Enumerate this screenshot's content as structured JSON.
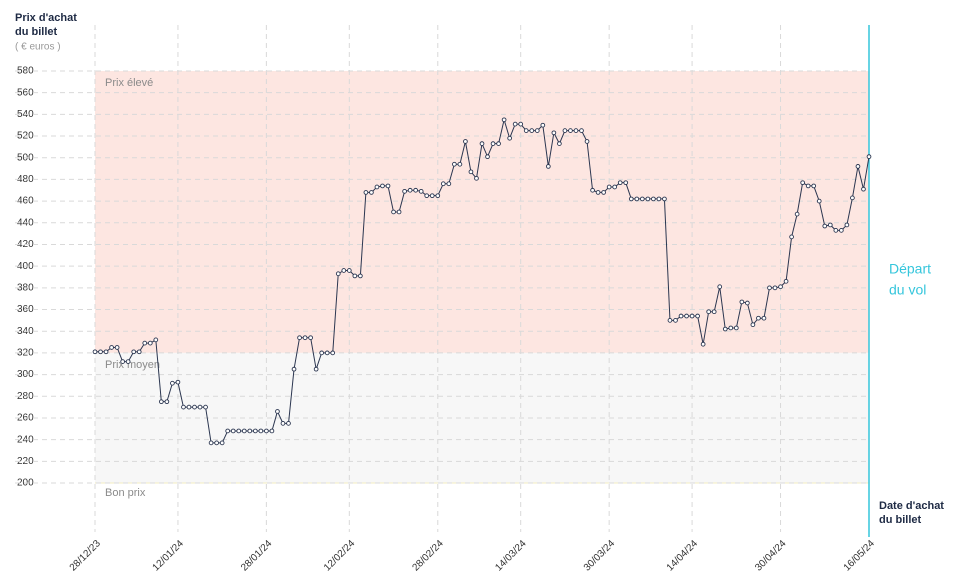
{
  "chart_data": {
    "type": "line",
    "y_title": [
      "Prix d'achat",
      "du billet"
    ],
    "y_unit": "( € euros )",
    "x_title": [
      "Date d'achat",
      "du billet"
    ],
    "annotation": [
      "Départ",
      "du vol"
    ],
    "bands": [
      {
        "label": "Prix élevé",
        "from": 320,
        "to": 580,
        "color": "#fde6e1"
      },
      {
        "label": "Prix moyen",
        "from": 200,
        "to": 320,
        "color": "#f7f7f7"
      },
      {
        "label": "Bon prix",
        "to": 200,
        "color": "#fdfbe9"
      }
    ],
    "x": [
      "28/12/23",
      "29/12/23",
      "30/12/23",
      "31/12/23",
      "01/01/24",
      "02/01/24",
      "03/01/24",
      "04/01/24",
      "05/01/24",
      "06/01/24",
      "07/01/24",
      "08/01/24",
      "09/01/24",
      "10/01/24",
      "11/01/24",
      "12/01/24",
      "13/01/24",
      "14/01/24",
      "15/01/24",
      "16/01/24",
      "17/01/24",
      "18/01/24",
      "19/01/24",
      "20/01/24",
      "21/01/24",
      "22/01/24",
      "23/01/24",
      "24/01/24",
      "25/01/24",
      "26/01/24",
      "27/01/24",
      "28/01/24",
      "29/01/24",
      "30/01/24",
      "31/01/24",
      "01/02/24",
      "02/02/24",
      "03/02/24",
      "04/02/24",
      "05/02/24",
      "06/02/24",
      "07/02/24",
      "08/02/24",
      "09/02/24",
      "10/02/24",
      "11/02/24",
      "12/02/24",
      "13/02/24",
      "14/02/24",
      "15/02/24",
      "16/02/24",
      "17/02/24",
      "18/02/24",
      "19/02/24",
      "20/02/24",
      "21/02/24",
      "22/02/24",
      "23/02/24",
      "24/02/24",
      "25/02/24",
      "26/02/24",
      "27/02/24",
      "28/02/24",
      "29/02/24",
      "01/03/24",
      "02/03/24",
      "03/03/24",
      "04/03/24",
      "05/03/24",
      "06/03/24",
      "07/03/24",
      "08/03/24",
      "09/03/24",
      "10/03/24",
      "11/03/24",
      "12/03/24",
      "13/03/24",
      "14/03/24",
      "15/03/24",
      "16/03/24",
      "17/03/24",
      "18/03/24",
      "19/03/24",
      "20/03/24",
      "21/03/24",
      "22/03/24",
      "23/03/24",
      "24/03/24",
      "25/03/24",
      "26/03/24",
      "27/03/24",
      "28/03/24",
      "29/03/24",
      "30/03/24",
      "31/03/24",
      "01/04/24",
      "02/04/24",
      "03/04/24",
      "04/04/24",
      "05/04/24",
      "06/04/24",
      "07/04/24",
      "08/04/24",
      "09/04/24",
      "10/04/24",
      "11/04/24",
      "12/04/24",
      "13/04/24",
      "14/04/24",
      "15/04/24",
      "16/04/24",
      "17/04/24",
      "18/04/24",
      "19/04/24",
      "20/04/24",
      "21/04/24",
      "22/04/24",
      "23/04/24",
      "24/04/24",
      "25/04/24",
      "26/04/24",
      "27/04/24",
      "28/04/24",
      "29/04/24",
      "30/04/24",
      "01/05/24",
      "02/05/24",
      "03/05/24",
      "04/05/24",
      "05/05/24",
      "06/05/24",
      "07/05/24",
      "08/05/24",
      "09/05/24",
      "10/05/24",
      "11/05/24",
      "12/05/24",
      "13/05/24",
      "14/05/24",
      "15/05/24",
      "16/05/24"
    ],
    "series": [
      {
        "name": "Prix",
        "color": "#2b3650",
        "values": [
          321,
          321,
          321,
          325,
          325,
          312,
          312,
          321,
          321,
          329,
          329,
          332,
          275,
          275,
          292,
          293,
          270,
          270,
          270,
          270,
          270,
          237,
          237,
          237,
          248,
          248,
          248,
          248,
          248,
          248,
          248,
          248,
          248,
          266,
          255,
          255,
          305,
          334,
          334,
          334,
          305,
          320,
          320,
          320,
          393,
          396,
          396,
          391,
          391,
          468,
          468,
          473,
          474,
          474,
          450,
          450,
          469,
          470,
          470,
          469,
          465,
          465,
          465,
          476,
          476,
          494,
          494,
          515,
          487,
          481,
          513,
          501,
          513,
          513,
          535,
          518,
          531,
          531,
          525,
          525,
          525,
          530,
          492,
          523,
          513,
          525,
          525,
          525,
          525,
          515,
          470,
          468,
          468,
          473,
          473,
          477,
          477,
          462,
          462,
          462,
          462,
          462,
          462,
          462,
          350,
          350,
          354,
          354,
          354,
          354,
          328,
          358,
          358,
          381,
          342,
          343,
          343,
          367,
          366,
          346,
          352,
          352,
          380,
          380,
          381,
          386,
          427,
          448,
          477,
          474,
          474,
          460,
          437,
          438,
          433,
          433,
          438,
          463,
          492,
          471,
          501
        ]
      }
    ],
    "ylim": [
      200,
      580
    ],
    "yticks": [
      200,
      220,
      240,
      260,
      280,
      300,
      320,
      340,
      360,
      380,
      400,
      420,
      440,
      460,
      480,
      500,
      520,
      540,
      560,
      580
    ],
    "xticks": [
      "28/12/23",
      "12/01/24",
      "28/01/24",
      "12/02/24",
      "28/02/24",
      "14/03/24",
      "30/03/24",
      "14/04/24",
      "30/04/24",
      "16/05/24"
    ],
    "grid": true,
    "annotation_color": "#35c6dc"
  }
}
